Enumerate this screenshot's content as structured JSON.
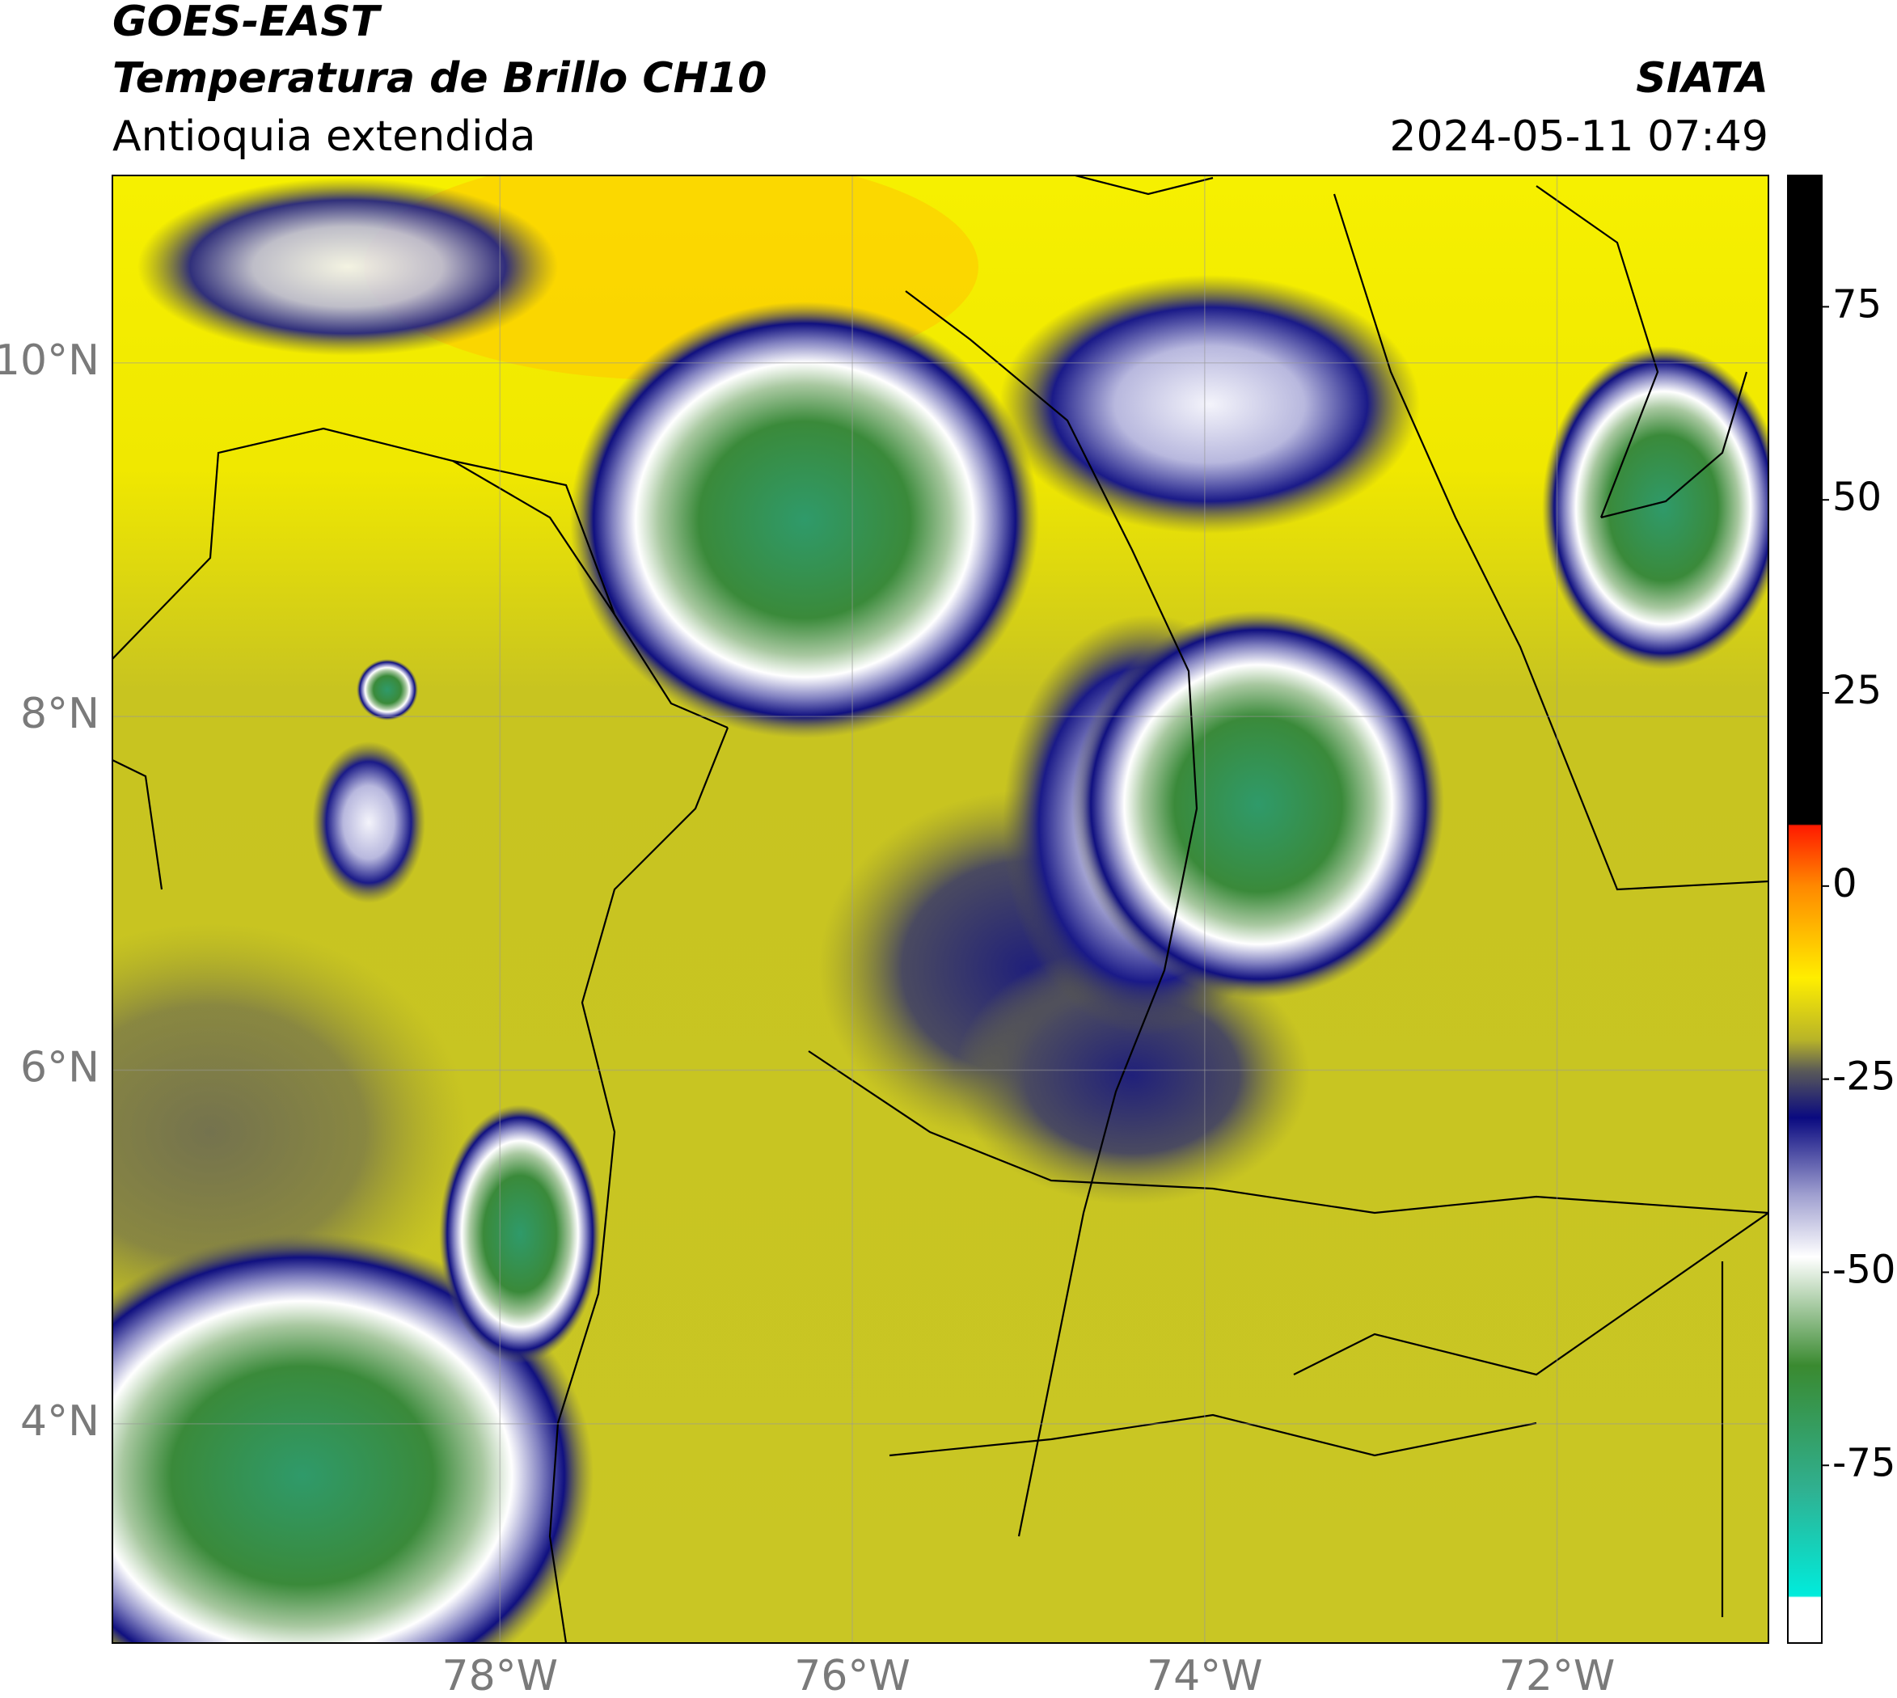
{
  "header": {
    "satellite": "GOES-EAST",
    "product": "Temperatura de Brillo CH10",
    "region": "Antioquia extendida",
    "source": "SIATA",
    "timestamp": "2024-05-11 07:49"
  },
  "map": {
    "lonlim": [
      -80.2,
      -70.8
    ],
    "latlim": [
      2.76,
      11.06
    ],
    "xticks": [
      {
        "value": -78,
        "label": "78°W"
      },
      {
        "value": -76,
        "label": "76°W"
      },
      {
        "value": -74,
        "label": "74°W"
      },
      {
        "value": -72,
        "label": "72°W"
      }
    ],
    "yticks": [
      {
        "value": 10,
        "label": "10°N"
      },
      {
        "value": 8,
        "label": "8°N"
      },
      {
        "value": 6,
        "label": "6°N"
      },
      {
        "value": 4,
        "label": "4°N"
      }
    ]
  },
  "colorbar": {
    "lim": [
      -98,
      92
    ],
    "ticks": [
      75,
      50,
      25,
      0,
      -25,
      -50,
      -75
    ]
  }
}
